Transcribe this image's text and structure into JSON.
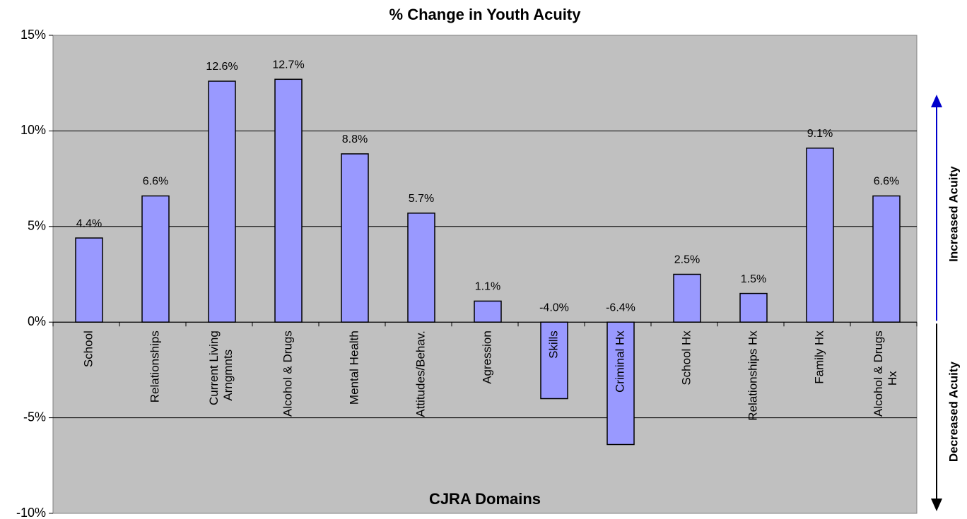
{
  "chart_data": {
    "type": "bar",
    "title": "% Change in Youth Acuity",
    "x_label": "CJRA Domains",
    "categories": [
      "School",
      "Relationships",
      "Current Living Arngmnts",
      "Alcohol & Drugs",
      "Mental Health",
      "Attitudes/Behav.",
      "Agression",
      "Skills",
      "Criminal Hx",
      "School Hx",
      "Relationships Hx",
      "Family Hx",
      "Alcohol & Drugs Hx"
    ],
    "values": [
      4.4,
      6.6,
      12.6,
      12.7,
      8.8,
      5.7,
      1.1,
      -4.0,
      -6.4,
      2.5,
      1.5,
      9.1,
      6.6
    ],
    "value_labels": [
      "4.4%",
      "6.6%",
      "12.6%",
      "12.7%",
      "8.8%",
      "5.7%",
      "1.1%",
      "-4.0%",
      "-6.4%",
      "2.5%",
      "1.5%",
      "9.1%",
      "6.6%"
    ],
    "color": "#9999ff",
    "ylim": [
      -10,
      15
    ],
    "yticks": [
      {
        "value": -10,
        "label": "-10%"
      },
      {
        "value": -5,
        "label": "-5%"
      },
      {
        "value": 0,
        "label": "0%"
      },
      {
        "value": 5,
        "label": "5%"
      },
      {
        "value": 10,
        "label": "10%"
      },
      {
        "value": 15,
        "label": "15%"
      }
    ],
    "grid": true,
    "annotations": [
      {
        "text": "Increased Acuity",
        "color": "#0000cc"
      },
      {
        "text": "Decreased Acuity",
        "color": "#000000"
      }
    ]
  }
}
